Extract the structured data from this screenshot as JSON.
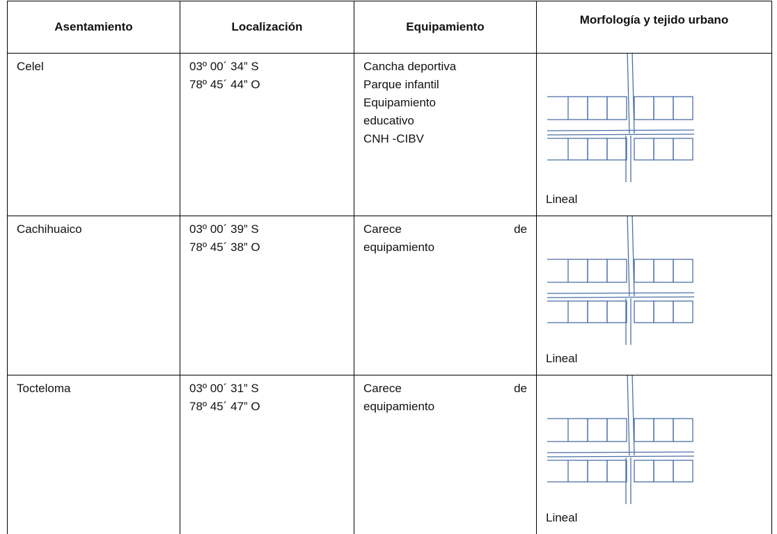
{
  "table": {
    "headers": [
      "Asentamiento",
      "Localización",
      "Equipamiento",
      "Morfología y tejido urbano"
    ],
    "rows": [
      {
        "name": "Celel",
        "location": [
          "03º 00´ 34” S",
          "78º 45´ 44” O"
        ],
        "equipment": [
          "Cancha deportiva",
          "Parque infantil",
          "Equipamiento",
          "educativo",
          "CNH -CIBV"
        ],
        "morphology": "Lineal"
      },
      {
        "name": "Cachihuaico",
        "location": [
          "03º 00´ 39” S",
          "78º 45´ 38” O"
        ],
        "equipment": [
          "Carece de",
          "equipamiento"
        ],
        "morphology": "Lineal"
      },
      {
        "name": "Tocteloma",
        "location": [
          "03º 00´ 31” S",
          "78º 45´ 47” O"
        ],
        "equipment": [
          "Carece de",
          "equipamiento"
        ],
        "morphology": "Lineal"
      }
    ]
  }
}
